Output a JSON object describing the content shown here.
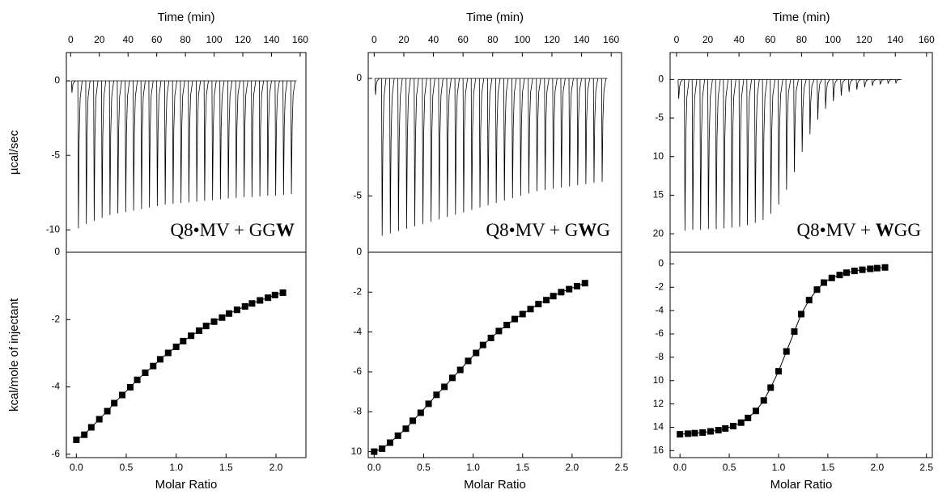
{
  "chart_data": [
    {
      "type": "spike",
      "x_label": "Time (min)",
      "y_label": "µcal/sec",
      "color": "#000000",
      "xlim": [
        -3,
        164
      ],
      "xticks": [
        0,
        20,
        40,
        60,
        80,
        100,
        120,
        140,
        160
      ],
      "ylim": [
        -11.5,
        1.9
      ],
      "yticks": [
        0,
        -5,
        -10
      ],
      "annotation": [
        {
          "text": "Q8•MV + GG",
          "bold": false
        },
        {
          "text": "W",
          "bold": true
        }
      ],
      "x": [
        0.5,
        5,
        10.5,
        16,
        21.5,
        27,
        32.5,
        38,
        43.5,
        49,
        54.5,
        60,
        65.5,
        71,
        76.5,
        82,
        87.5,
        93,
        98.5,
        104,
        109.5,
        115,
        120.5,
        126,
        131.5,
        137,
        142.5,
        148,
        153.5
      ],
      "values": [
        -0.8,
        -9.9,
        -9.6,
        -9.4,
        -9.2,
        -9.0,
        -8.9,
        -8.8,
        -8.7,
        -8.6,
        -8.5,
        -8.4,
        -8.3,
        -8.25,
        -8.2,
        -8.15,
        -8.1,
        -8.05,
        -8.0,
        -7.95,
        -7.9,
        -7.85,
        -7.8,
        -7.8,
        -7.75,
        -7.7,
        -7.7,
        -7.65,
        -7.6
      ]
    },
    {
      "type": "scatter",
      "x_label": "Molar Ratio",
      "y_label": "kcal/mole of injectant",
      "color": "#000000",
      "xlim": [
        -0.1,
        2.3
      ],
      "xticks": [
        {
          "value": 0,
          "label": "0.0"
        },
        {
          "value": 0.5,
          "label": "0.5"
        },
        {
          "value": 1,
          "label": "1.0"
        },
        {
          "value": 1.5,
          "label": "1.5"
        },
        {
          "value": 2,
          "label": "2.0"
        }
      ],
      "ylim": [
        -6.1,
        0
      ],
      "yticks": [
        0,
        -2,
        -4,
        -6
      ],
      "x": [
        0.0,
        0.08,
        0.15,
        0.23,
        0.31,
        0.38,
        0.46,
        0.54,
        0.61,
        0.69,
        0.77,
        0.84,
        0.92,
        1.0,
        1.07,
        1.15,
        1.23,
        1.3,
        1.38,
        1.46,
        1.53,
        1.61,
        1.69,
        1.76,
        1.84,
        1.92,
        1.99,
        2.07
      ],
      "values": [
        -5.57,
        -5.42,
        -5.2,
        -4.96,
        -4.72,
        -4.48,
        -4.24,
        -4.01,
        -3.79,
        -3.58,
        -3.38,
        -3.18,
        -2.99,
        -2.81,
        -2.64,
        -2.48,
        -2.33,
        -2.19,
        -2.06,
        -1.94,
        -1.82,
        -1.71,
        -1.61,
        -1.52,
        -1.43,
        -1.35,
        -1.27,
        -1.2
      ]
    },
    {
      "type": "spike",
      "x_label": "Time (min)",
      "color": "#000000",
      "xlim": [
        -4,
        167
      ],
      "xticks": [
        0,
        20,
        40,
        60,
        80,
        100,
        120,
        140,
        160
      ],
      "ylim": [
        -7.4,
        1.1
      ],
      "yticks": [
        0,
        -5
      ],
      "annotation": [
        {
          "text": "Q8•MV + G",
          "bold": false
        },
        {
          "text": "W",
          "bold": true
        },
        {
          "text": "G",
          "bold": false
        }
      ],
      "x": [
        0.5,
        5,
        10.5,
        16,
        21.5,
        27,
        32.5,
        38,
        43.5,
        49,
        54.5,
        60,
        65.5,
        71,
        76.5,
        82,
        87.5,
        93,
        98.5,
        104,
        109.5,
        115,
        120.5,
        126,
        131.5,
        137,
        142.5,
        148,
        153.5
      ],
      "values": [
        -0.7,
        -6.7,
        -6.6,
        -6.5,
        -6.4,
        -6.3,
        -6.2,
        -6.1,
        -6.0,
        -5.9,
        -5.8,
        -5.7,
        -5.6,
        -5.5,
        -5.4,
        -5.3,
        -5.2,
        -5.1,
        -5.0,
        -4.9,
        -4.8,
        -4.75,
        -4.7,
        -4.65,
        -4.6,
        -4.55,
        -4.5,
        -4.45,
        -4.4
      ]
    },
    {
      "type": "scatter",
      "x_label": "Molar Ratio",
      "color": "#000000",
      "xlim": [
        -0.06,
        2.5
      ],
      "xticks": [
        {
          "value": 0,
          "label": "0.0"
        },
        {
          "value": 0.5,
          "label": "0.5"
        },
        {
          "value": 1,
          "label": "1.0"
        },
        {
          "value": 1.5,
          "label": "1.5"
        },
        {
          "value": 2,
          "label": "2.0"
        },
        {
          "value": 2.5,
          "label": "2.5"
        }
      ],
      "ylim": [
        -10.3,
        0
      ],
      "yticks": [
        0,
        -2,
        -4,
        -6,
        -8,
        {
          "value": -10,
          "label": "10"
        }
      ],
      "x": [
        0.0,
        0.08,
        0.16,
        0.24,
        0.32,
        0.39,
        0.47,
        0.55,
        0.63,
        0.71,
        0.79,
        0.87,
        0.95,
        1.03,
        1.1,
        1.18,
        1.26,
        1.34,
        1.42,
        1.5,
        1.58,
        1.66,
        1.74,
        1.81,
        1.89,
        1.97,
        2.05,
        2.13
      ],
      "values": [
        -10.0,
        -9.85,
        -9.55,
        -9.2,
        -8.85,
        -8.45,
        -8.05,
        -7.6,
        -7.15,
        -6.75,
        -6.3,
        -5.9,
        -5.45,
        -5.05,
        -4.65,
        -4.3,
        -3.95,
        -3.65,
        -3.35,
        -3.1,
        -2.85,
        -2.6,
        -2.4,
        -2.2,
        -2.0,
        -1.85,
        -1.7,
        -1.55
      ]
    },
    {
      "type": "spike",
      "x_label": "Time (min)",
      "color": "#000000",
      "xlim": [
        -4.1,
        163.7
      ],
      "xticks": [
        0,
        20,
        40,
        60,
        80,
        100,
        120,
        140,
        160
      ],
      "ylim": [
        -22.4,
        3.5
      ],
      "yticks": [
        0,
        -5,
        {
          "value": -10,
          "label": "10"
        },
        {
          "value": -15,
          "label": "15"
        },
        {
          "value": -20,
          "label": "20"
        }
      ],
      "annotation": [
        {
          "text": "Q8•MV + ",
          "bold": false
        },
        {
          "text": "W",
          "bold": true
        },
        {
          "text": "GG",
          "bold": false
        }
      ],
      "x": [
        1,
        5,
        10,
        15,
        20,
        25,
        30,
        35,
        40,
        45,
        50,
        55,
        60,
        65,
        70,
        75,
        80,
        85,
        90,
        95,
        100,
        105,
        110,
        115,
        120,
        125,
        130,
        135,
        140
      ],
      "values": [
        -2.5,
        -19.6,
        -19.5,
        -19.5,
        -19.4,
        -19.4,
        -19.3,
        -19.2,
        -19.1,
        -18.9,
        -18.6,
        -18.2,
        -17.4,
        -16.2,
        -14.3,
        -12.0,
        -9.4,
        -7.1,
        -5.2,
        -3.8,
        -2.8,
        -2.1,
        -1.6,
        -1.3,
        -1.0,
        -0.8,
        -0.65,
        -0.55,
        -0.45
      ]
    },
    {
      "type": "scatter",
      "x_label": "Molar Ratio",
      "color": "#000000",
      "xlim": [
        -0.1,
        2.56
      ],
      "xticks": [
        {
          "value": 0,
          "label": "0.0"
        },
        {
          "value": 0.5,
          "label": "0.5"
        },
        {
          "value": 1,
          "label": "1.0"
        },
        {
          "value": 1.5,
          "label": "1.5"
        },
        {
          "value": 2,
          "label": "2.0"
        },
        {
          "value": 2.5,
          "label": "2.5"
        }
      ],
      "ylim": [
        -16.6,
        1.0
      ],
      "yticks": [
        0,
        -2,
        -4,
        -6,
        -8,
        {
          "value": -10,
          "label": "10"
        },
        {
          "value": -12,
          "label": "12"
        },
        {
          "value": -14,
          "label": "14"
        },
        {
          "value": -16,
          "label": "16"
        }
      ],
      "x": [
        0.0,
        0.08,
        0.15,
        0.23,
        0.31,
        0.39,
        0.46,
        0.54,
        0.62,
        0.69,
        0.77,
        0.85,
        0.92,
        1.0,
        1.08,
        1.16,
        1.23,
        1.31,
        1.39,
        1.46,
        1.54,
        1.62,
        1.69,
        1.77,
        1.85,
        1.93,
        2.0,
        2.08
      ],
      "values": [
        -14.6,
        -14.55,
        -14.5,
        -14.45,
        -14.35,
        -14.25,
        -14.1,
        -13.9,
        -13.6,
        -13.2,
        -12.6,
        -11.7,
        -10.6,
        -9.2,
        -7.5,
        -5.8,
        -4.3,
        -3.1,
        -2.2,
        -1.6,
        -1.2,
        -0.95,
        -0.75,
        -0.6,
        -0.5,
        -0.42,
        -0.36,
        -0.3
      ]
    }
  ]
}
